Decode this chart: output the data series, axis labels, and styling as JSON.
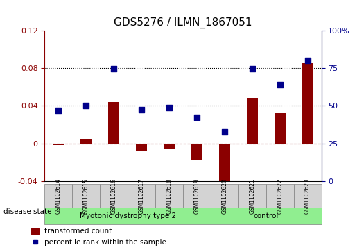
{
  "title": "GDS5276 / ILMN_1867051",
  "samples": [
    "GSM1102614",
    "GSM1102615",
    "GSM1102616",
    "GSM1102617",
    "GSM1102618",
    "GSM1102619",
    "GSM1102620",
    "GSM1102621",
    "GSM1102622",
    "GSM1102623"
  ],
  "transformed_count": [
    -0.002,
    0.005,
    0.044,
    -0.008,
    -0.006,
    -0.018,
    -0.058,
    0.048,
    0.032,
    0.085
  ],
  "percentile_rank": [
    0.035,
    0.04,
    0.079,
    0.036,
    0.038,
    0.028,
    0.012,
    0.079,
    0.062,
    0.088
  ],
  "groups": [
    {
      "label": "Myotonic dystrophy type 2",
      "start": 0,
      "end": 6,
      "color": "#90EE90"
    },
    {
      "label": "control",
      "start": 6,
      "end": 10,
      "color": "#90EE90"
    }
  ],
  "ylim_left": [
    -0.04,
    0.12
  ],
  "ylim_right": [
    0,
    100
  ],
  "yticks_left": [
    -0.04,
    0,
    0.04,
    0.08,
    0.12
  ],
  "yticks_right": [
    0,
    25,
    50,
    75,
    100
  ],
  "ytick_labels_left": [
    "-0.04",
    "0",
    "0.04",
    "0.08",
    "0.12"
  ],
  "ytick_labels_right": [
    "0",
    "25",
    "50",
    "75",
    "100%"
  ],
  "hlines": [
    0.04,
    0.08
  ],
  "bar_color": "#8B0000",
  "dot_color": "#00008B",
  "bar_width": 0.4,
  "dot_size": 30,
  "disease_state_label": "disease state",
  "legend_bar_label": "transformed count",
  "legend_dot_label": "percentile rank within the sample",
  "background_color": "#FFFFFF",
  "plot_bg_color": "#FFFFFF",
  "group_label_fontsize": 9,
  "title_fontsize": 11
}
